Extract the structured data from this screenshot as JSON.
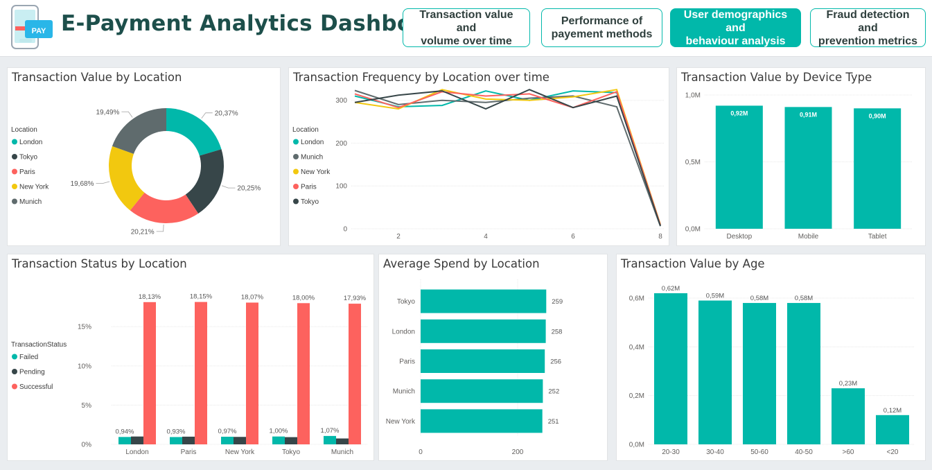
{
  "header": {
    "title": "E-Payment Analytics Dashboard",
    "logo_text": "PAY",
    "nav": [
      {
        "label_1": "Transaction value and",
        "label_2": "volume over time",
        "active": false
      },
      {
        "label_1": "Performance of",
        "label_2": "payement methods",
        "active": false
      },
      {
        "label_1": "User demographics and",
        "label_2": "behaviour analysis",
        "active": true
      },
      {
        "label_1": "Fraud detection and",
        "label_2": "prevention metrics",
        "active": false
      }
    ]
  },
  "colors": {
    "teal": "#01b8aa",
    "dark": "#374649",
    "red": "#fd625e",
    "yellow": "#f2c80f",
    "gray": "#5f6b6d",
    "accent_title": "#1d4f4b"
  },
  "cards": {
    "value_by_location": "Transaction Value by Location",
    "freq_over_time": "Transaction Frequency by Location over time",
    "value_by_device": "Transaction Value by Device Type",
    "status_by_location": "Transaction Status by Location",
    "avg_spend": "Average Spend by Location",
    "value_by_age": "Transaction Value by Age"
  },
  "chart_data": [
    {
      "id": "donut",
      "type": "pie",
      "title": "Transaction Value by Location",
      "legend_title": "Location",
      "legend_position": "left",
      "legend": [
        "London",
        "Tokyo",
        "Paris",
        "New York",
        "Munich"
      ],
      "slices": [
        {
          "name": "London",
          "value": 20.37,
          "label": "20,37%",
          "color": "#01b8aa"
        },
        {
          "name": "Tokyo",
          "value": 20.25,
          "label": "20,25%",
          "color": "#374649"
        },
        {
          "name": "Paris",
          "value": 20.21,
          "label": "20,21%",
          "color": "#fd625e"
        },
        {
          "name": "New York",
          "value": 19.68,
          "label": "19,68%",
          "color": "#f2c80f"
        },
        {
          "name": "Munich",
          "value": 19.49,
          "label": "19,49%",
          "color": "#5f6b6d"
        }
      ]
    },
    {
      "id": "lines",
      "type": "line",
      "title": "Transaction Frequency by Location over time",
      "legend_title": "Location",
      "legend_position": "left",
      "x": [
        1,
        2,
        3,
        4,
        5,
        6,
        7,
        8
      ],
      "x_ticks": [
        "2",
        "4",
        "6",
        "8"
      ],
      "x_tick_values": [
        2,
        4,
        6,
        8
      ],
      "y_ticks": [
        "0",
        "100",
        "200",
        "300"
      ],
      "ylim": [
        0,
        340
      ],
      "series": [
        {
          "name": "London",
          "color": "#01b8aa",
          "values": [
            310,
            285,
            288,
            322,
            300,
            322,
            318,
            8
          ]
        },
        {
          "name": "Munich",
          "color": "#5f6b6d",
          "values": [
            323,
            290,
            300,
            295,
            305,
            310,
            285,
            6
          ]
        },
        {
          "name": "New York",
          "color": "#f2c80f",
          "values": [
            295,
            280,
            325,
            303,
            300,
            308,
            325,
            10
          ]
        },
        {
          "name": "Paris",
          "color": "#fd625e",
          "values": [
            315,
            283,
            320,
            310,
            315,
            283,
            320,
            9
          ]
        },
        {
          "name": "Tokyo",
          "color": "#374649",
          "values": [
            295,
            312,
            322,
            280,
            325,
            283,
            310,
            7
          ]
        }
      ]
    },
    {
      "id": "device",
      "type": "bar",
      "title": "Transaction Value by Device Type",
      "categories": [
        "Desktop",
        "Mobile",
        "Tablet"
      ],
      "values": [
        0.92,
        0.91,
        0.9
      ],
      "labels": [
        "0,92M",
        "0,91M",
        "0,90M"
      ],
      "y_ticks": [
        "0,0M",
        "0,5M",
        "1,0M"
      ],
      "y_tick_values": [
        0,
        0.5,
        1.0
      ],
      "ylim": [
        0,
        1.0
      ]
    },
    {
      "id": "status",
      "type": "bar",
      "title": "Transaction Status by Location",
      "legend_title": "TransactionStatus",
      "legend_position": "left",
      "categories": [
        "London",
        "Paris",
        "New York",
        "Tokyo",
        "Munich"
      ],
      "y_ticks": [
        "0%",
        "5%",
        "10%",
        "15%"
      ],
      "y_tick_values": [
        0,
        5,
        10,
        15
      ],
      "ylim": [
        0,
        20.5
      ],
      "series": [
        {
          "name": "Failed",
          "color": "#01b8aa",
          "values": [
            0.94,
            0.93,
            0.97,
            1.0,
            1.07
          ],
          "labels": [
            "0,94%",
            "0,93%",
            "0,97%",
            "1,00%",
            "1,07%"
          ]
        },
        {
          "name": "Pending",
          "color": "#374649",
          "values": [
            1.0,
            0.98,
            0.95,
            0.92,
            0.75
          ],
          "labels": []
        },
        {
          "name": "Successful",
          "color": "#fd625e",
          "values": [
            18.13,
            18.15,
            18.07,
            18.0,
            17.93
          ],
          "labels": [
            "18,13%",
            "18,15%",
            "18,07%",
            "18,00%",
            "17,93%"
          ]
        }
      ]
    },
    {
      "id": "avgspend",
      "type": "bar",
      "orientation": "horizontal",
      "title": "Average Spend by Location",
      "categories": [
        "Tokyo",
        "London",
        "Paris",
        "Munich",
        "New York"
      ],
      "values": [
        259,
        258,
        256,
        252,
        251
      ],
      "labels": [
        "259",
        "258",
        "256",
        "252",
        "251"
      ],
      "x_ticks": [
        "0",
        "200"
      ],
      "x_tick_values": [
        0,
        200
      ],
      "xlim": [
        0,
        290
      ]
    },
    {
      "id": "age",
      "type": "bar",
      "title": "Transaction Value by Age",
      "categories": [
        "20-30",
        "30-40",
        "50-60",
        "40-50",
        ">60",
        "<20"
      ],
      "values": [
        0.62,
        0.59,
        0.58,
        0.58,
        0.23,
        0.12
      ],
      "labels": [
        "0,62M",
        "0,59M",
        "0,58M",
        "0,58M",
        "0,23M",
        "0,12M"
      ],
      "y_ticks": [
        "0,0M",
        "0,2M",
        "0,4M",
        "0,6M"
      ],
      "y_tick_values": [
        0,
        0.2,
        0.4,
        0.6
      ],
      "ylim": [
        0,
        0.62
      ]
    }
  ]
}
